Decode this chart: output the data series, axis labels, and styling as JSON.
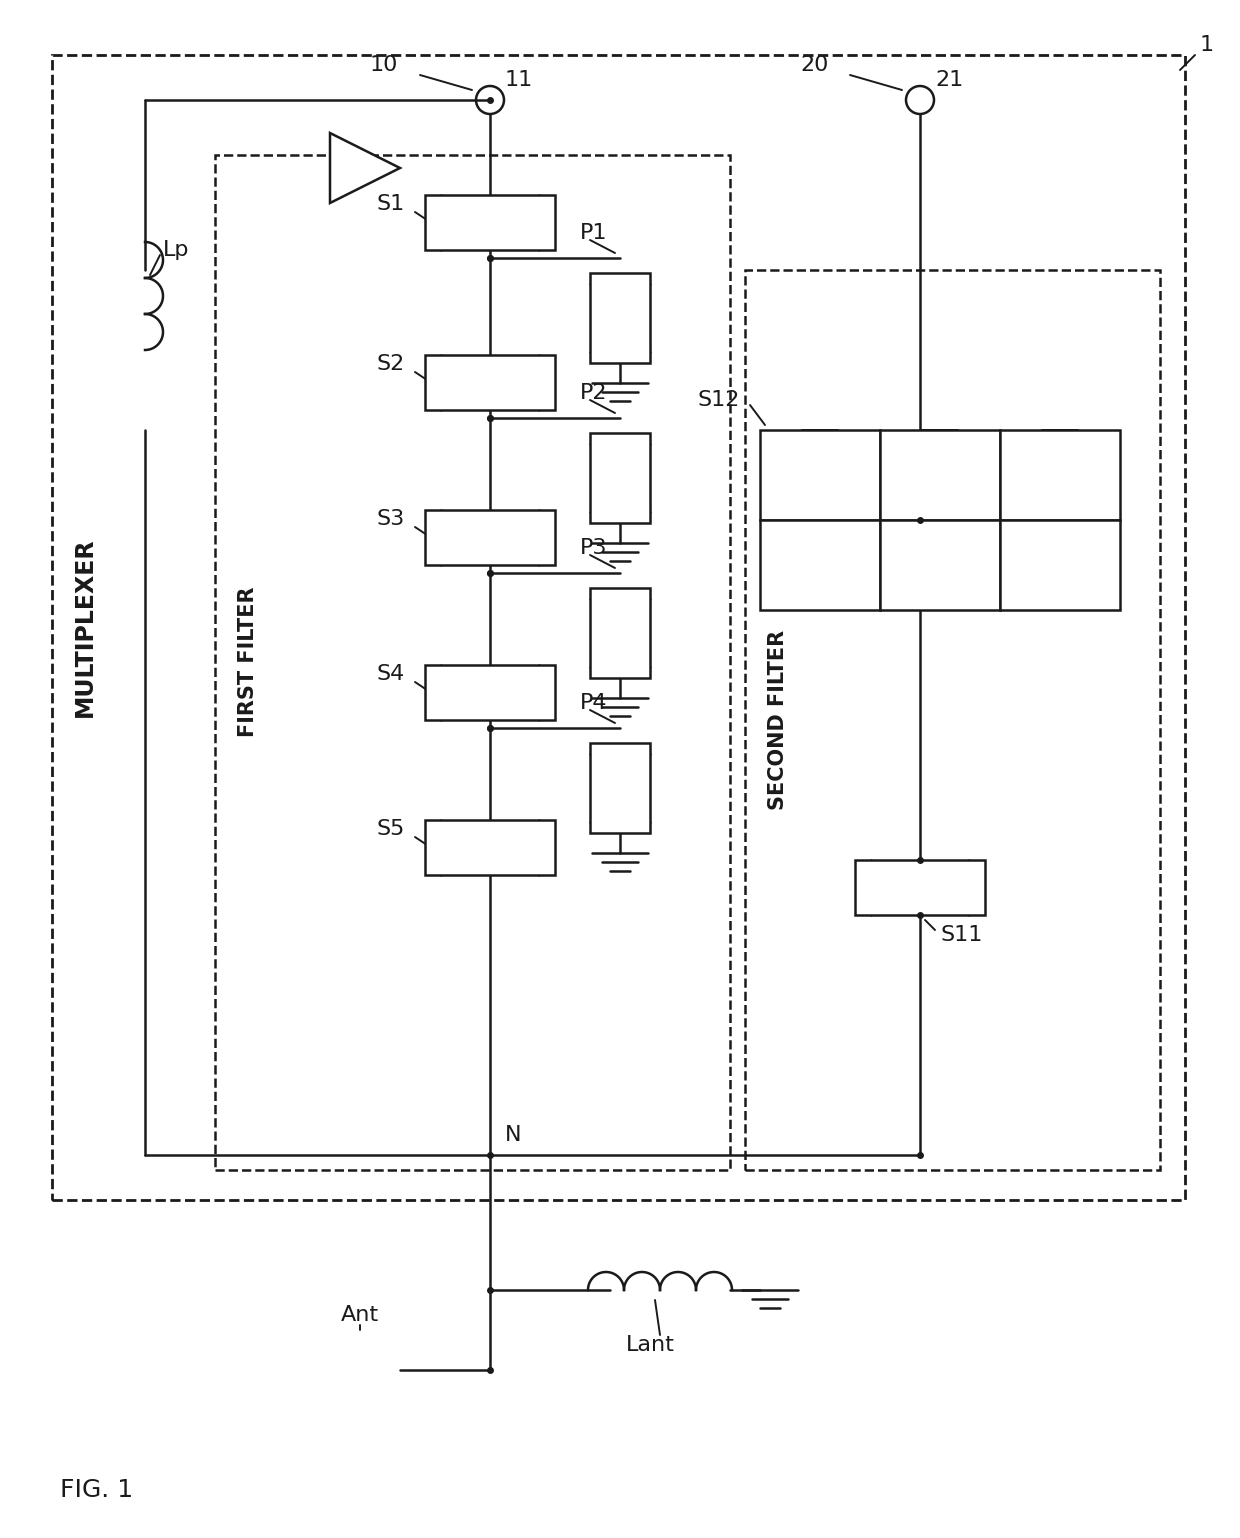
{
  "fig_width": 12.4,
  "fig_height": 15.38,
  "bg_color": "#ffffff",
  "lc": "#1a1a1a",
  "lw": 1.8,
  "labels": {
    "fig_label": "FIG. 1",
    "multiplexer": "MULTIPLEXER",
    "first_filter": "FIRST FILTER",
    "second_filter": "SECOND FILTER",
    "node_1": "1",
    "node_10": "10",
    "node_11": "11",
    "node_20": "20",
    "node_21": "21",
    "Lp": "Lp",
    "S1": "S1",
    "S2": "S2",
    "S3": "S3",
    "S4": "S4",
    "S5": "S5",
    "S11": "S11",
    "S12": "S12",
    "P1": "P1",
    "P2": "P2",
    "P3": "P3",
    "P4": "P4",
    "N": "N",
    "Ant": "Ant",
    "Lant": "Lant"
  }
}
